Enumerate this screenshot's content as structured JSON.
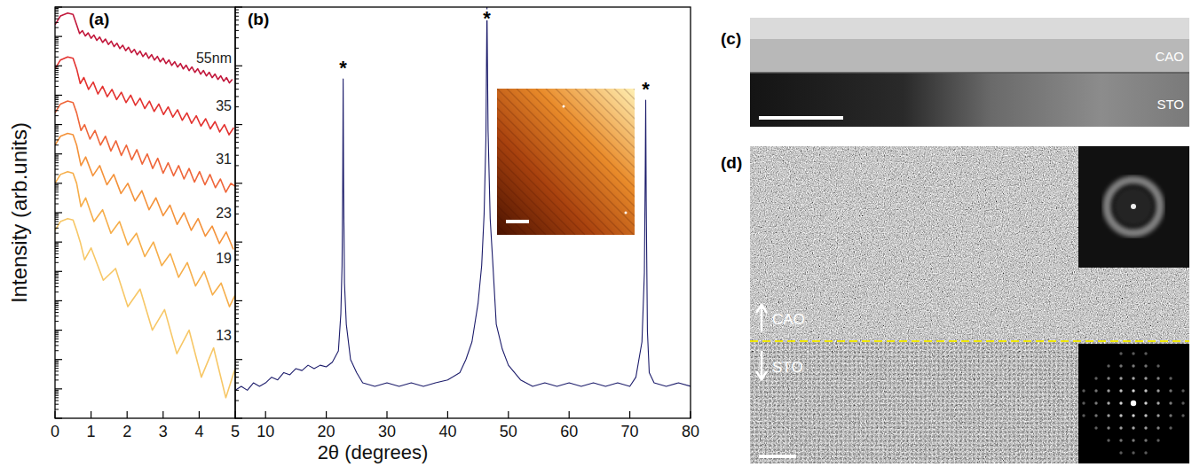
{
  "chart_data": [
    {
      "type": "line",
      "title": "(a)",
      "y_label": "Intensity (arb.units)",
      "xlim": [
        0,
        5
      ],
      "xticks": [
        0,
        1,
        2,
        3,
        4,
        5
      ],
      "ylim": [
        1e-14,
        1
      ],
      "yticks": [
        1e-14,
        1e-13,
        1e-12,
        1e-11,
        1e-10,
        1e-09,
        1e-08,
        1e-07,
        1e-06,
        1e-05,
        0.0001,
        0.001,
        0.01,
        0.1,
        1
      ],
      "log": "y",
      "tick_labels": "x",
      "series": [
        {
          "name": "55nm",
          "color": "#c2183c",
          "x": [
            0,
            0.15,
            0.35,
            0.5,
            0.6,
            0.68,
            0.76,
            0.84,
            0.92,
            1.0,
            1.08,
            1.16,
            1.24,
            1.32,
            1.4,
            1.48,
            1.56,
            1.64,
            1.72,
            1.8,
            1.88,
            1.96,
            2.04,
            2.12,
            2.2,
            2.28,
            2.36,
            2.44,
            2.52,
            2.6,
            2.68,
            2.76,
            2.84,
            2.92,
            3.0,
            3.08,
            3.16,
            3.24,
            3.32,
            3.4,
            3.48,
            3.56,
            3.64,
            3.72,
            3.8,
            3.88,
            3.96,
            4.04,
            4.12,
            4.2,
            4.28,
            4.36,
            4.44,
            4.52,
            4.6,
            4.68,
            4.76,
            4.84,
            4.92
          ],
          "values": [
            0.25,
            0.5,
            0.63,
            0.56,
            0.25,
            0.126,
            0.158,
            0.104,
            0.132,
            0.0865,
            0.112,
            0.0734,
            0.0955,
            0.0626,
            0.0813,
            0.0533,
            0.0692,
            0.0453,
            0.0589,
            0.0386,
            0.0501,
            0.0328,
            0.0427,
            0.028,
            0.0363,
            0.0238,
            0.0316,
            0.0207,
            0.0275,
            0.018,
            0.024,
            0.0157,
            0.0209,
            0.0137,
            0.0182,
            0.0119,
            0.0158,
            0.0103,
            0.0138,
            0.00904,
            0.012,
            0.00786,
            0.0105,
            0.00688,
            0.00912,
            0.00597,
            0.00794,
            0.0052,
            0.00692,
            0.00453,
            0.00603,
            0.00395,
            0.00525,
            0.00344,
            0.00457,
            0.00299,
            0.00398,
            0.00261,
            0.00347
          ]
        },
        {
          "name": "35",
          "color": "#e3322f",
          "x": [
            0,
            0.15,
            0.35,
            0.5,
            0.6,
            0.7,
            0.8,
            0.93,
            1.06,
            1.19,
            1.32,
            1.45,
            1.58,
            1.71,
            1.84,
            1.97,
            2.1,
            2.23,
            2.36,
            2.49,
            2.62,
            2.75,
            2.88,
            3.01,
            3.14,
            3.27,
            3.4,
            3.53,
            3.66,
            3.79,
            3.92,
            4.05,
            4.18,
            4.31,
            4.44,
            4.57,
            4.7,
            4.83,
            4.96
          ],
          "values": [
            0.0079,
            0.0158,
            0.02,
            0.018,
            0.0079,
            0.0025,
            0.004,
            0.00158,
            0.0028,
            0.0011,
            0.002,
            0.00089,
            0.00158,
            0.00071,
            0.00126,
            0.00056,
            0.001,
            0.00045,
            0.00079,
            0.00035,
            0.00063,
            0.00028,
            0.0005,
            0.00022,
            0.0004,
            0.00018,
            0.00032,
            0.00014,
            0.00025,
            0.00011,
            0.0002,
            8.9e-05,
            0.000158,
            7.1e-05,
            0.000126,
            5.6e-05,
            0.0001,
            4.5e-05,
            7.9e-05
          ]
        },
        {
          "name": "31",
          "color": "#ef663a",
          "x": [
            0,
            0.15,
            0.35,
            0.5,
            0.6,
            0.72,
            0.82,
            0.97,
            1.11,
            1.26,
            1.4,
            1.55,
            1.69,
            1.84,
            1.98,
            2.13,
            2.27,
            2.42,
            2.56,
            2.71,
            2.85,
            3.0,
            3.14,
            3.29,
            3.43,
            3.58,
            3.72,
            3.87,
            4.01,
            4.16,
            4.3,
            4.45,
            4.59,
            4.74,
            4.88,
            5.0
          ],
          "values": [
            0.00025,
            0.0005,
            0.00063,
            0.00056,
            0.00025,
            6.3e-05,
            0.0001,
            3.2e-05,
            6.3e-05,
            2e-05,
            4e-05,
            1.26e-05,
            2.8e-05,
            8.9e-06,
            2e-05,
            6.3e-06,
            1.4e-05,
            4.5e-06,
            1e-05,
            3.2e-06,
            7.1e-06,
            2.2e-06,
            5e-06,
            1.8e-06,
            4e-06,
            1.4e-06,
            3.2e-06,
            1.1e-06,
            2.5e-06,
            8.9e-07,
            2e-06,
            7.1e-07,
            1.4e-06,
            5e-07,
            1e-06,
            7.9e-07
          ]
        },
        {
          "name": "23",
          "color": "#f4923a",
          "x": [
            0,
            0.15,
            0.35,
            0.5,
            0.6,
            0.72,
            0.85,
            1.05,
            1.24,
            1.44,
            1.63,
            1.83,
            2.02,
            2.22,
            2.41,
            2.61,
            2.8,
            3.0,
            3.19,
            3.39,
            3.58,
            3.78,
            3.97,
            4.17,
            4.36,
            4.56,
            4.75,
            4.95
          ],
          "values": [
            2e-05,
            4e-05,
            5e-05,
            4.5e-05,
            2e-05,
            4e-06,
            7.9e-06,
            1.8e-06,
            4e-06,
            8.9e-07,
            2e-06,
            4.5e-07,
            1e-06,
            2.5e-07,
            5.6e-07,
            1.26e-07,
            3.2e-07,
            7.9e-08,
            1.8e-07,
            4e-08,
            1e-07,
            2.5e-08,
            6.3e-08,
            1.58e-08,
            3.5e-08,
            8.9e-09,
            2.2e-08,
            5.6e-09
          ]
        },
        {
          "name": "19",
          "color": "#f6ae4a",
          "x": [
            0,
            0.15,
            0.35,
            0.5,
            0.6,
            0.72,
            0.85,
            1.08,
            1.32,
            1.55,
            1.79,
            2.02,
            2.26,
            2.49,
            2.73,
            2.96,
            3.2,
            3.43,
            3.67,
            3.9,
            4.14,
            4.37,
            4.61,
            4.84,
            5.0
          ],
          "values": [
            1e-06,
            2e-06,
            2.5e-06,
            2.2e-06,
            1e-06,
            1.6e-07,
            3.2e-07,
            5e-08,
            1.26e-07,
            2e-08,
            5e-08,
            7.9e-09,
            2e-08,
            3.2e-09,
            1e-08,
            1.58e-09,
            4e-09,
            6.3e-10,
            2e-09,
            3.2e-10,
            1e-09,
            1.58e-10,
            4e-10,
            6.3e-11,
            1.58e-10
          ]
        },
        {
          "name": "13",
          "color": "#f7c766",
          "x": [
            0,
            0.15,
            0.35,
            0.5,
            0.6,
            0.7,
            0.82,
            1.0,
            1.34,
            1.68,
            2.02,
            2.36,
            2.7,
            3.04,
            3.38,
            3.72,
            4.06,
            4.4,
            4.74,
            5.0
          ],
          "values": [
            2.5e-08,
            5e-08,
            6.3e-08,
            5.6e-08,
            2.5e-08,
            1e-08,
            2.5e-09,
            6.3e-09,
            5e-10,
            1.26e-09,
            6.3e-11,
            2.5e-10,
            1e-11,
            5e-11,
            1.58e-12,
            1e-11,
            2.5e-13,
            2.5e-12,
            5e-14,
            5e-13
          ]
        }
      ]
    },
    {
      "type": "line",
      "title": "(b)",
      "x_label": "2θ (degrees)",
      "xlim": [
        5,
        80
      ],
      "xticks": [
        10,
        20,
        30,
        40,
        50,
        60,
        70,
        80
      ],
      "ylim": [
        1,
        10000000
      ],
      "yticks": [
        1,
        10,
        100,
        1000,
        10000,
        100000,
        1000000,
        10000000
      ],
      "log": "y",
      "tick_labels": "x",
      "color": "#1c1c6b",
      "x": [
        5,
        6,
        7,
        8,
        9,
        10,
        11,
        12,
        13,
        14,
        15,
        16,
        17,
        18,
        19,
        20,
        21,
        22,
        22.4,
        22.6,
        22.7,
        22.78,
        22.86,
        23,
        23.3,
        24,
        25,
        26,
        28,
        30,
        32,
        34,
        36,
        38,
        40,
        42,
        43,
        44,
        45,
        45.6,
        46,
        46.3,
        46.47,
        46.65,
        47,
        47.4,
        48,
        49,
        50,
        52,
        54,
        56,
        58,
        60,
        62,
        64,
        66,
        68,
        70,
        71,
        72,
        72.4,
        72.55,
        72.62,
        72.7,
        72.9,
        73.2,
        74,
        76,
        78,
        80
      ],
      "values": [
        3,
        3.5,
        3,
        4,
        3.5,
        4,
        5,
        4.5,
        6,
        5.5,
        7,
        6.5,
        8,
        7,
        8,
        7.5,
        9,
        14,
        60,
        400,
        6000,
        600000,
        8000,
        200,
        40,
        10,
        6,
        4,
        3.5,
        4,
        3.5,
        4,
        3.5,
        4,
        4.5,
        6,
        10,
        20,
        90,
        400,
        3000,
        60000,
        10000000,
        80000,
        2500,
        500,
        40,
        15,
        8,
        4.5,
        3.5,
        4,
        3.5,
        4,
        3.5,
        4,
        3.5,
        4,
        3.5,
        5,
        20,
        300,
        20000,
        260000,
        5000,
        30,
        6,
        4,
        3.5,
        4,
        3.5
      ],
      "annotations": [
        {
          "text": "*",
          "x": 22.78,
          "y": 600000
        },
        {
          "text": "*",
          "x": 46.47,
          "y": 10000000
        },
        {
          "text": "*",
          "x": 72.62,
          "y": 260000
        }
      ]
    }
  ],
  "images": [
    {
      "title": "(c)",
      "labels": [
        "CAO",
        "STO"
      ]
    },
    {
      "title": "(d)",
      "labels": [
        "CAO",
        "STO"
      ]
    }
  ]
}
